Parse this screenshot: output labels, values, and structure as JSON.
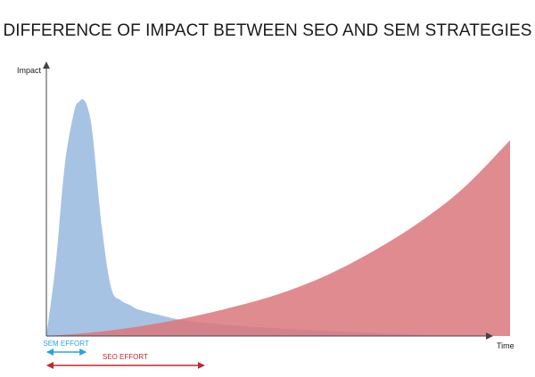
{
  "chart_data": {
    "type": "area",
    "title": "DIFFERENCE OF IMPACT BETWEEN SEO AND SEM STRATEGIES",
    "xlabel": "Time",
    "ylabel": "Impact",
    "xlim": [
      0,
      100
    ],
    "ylim": [
      0,
      100
    ],
    "grid": false,
    "series": [
      {
        "color": "#a7c3e3",
        "x": [
          0,
          2,
          4,
          6,
          7,
          8,
          9,
          10,
          12,
          14,
          16,
          18,
          20,
          25,
          30,
          40,
          50,
          60,
          70,
          80,
          85
        ],
        "y": [
          0,
          30,
          72,
          94,
          98,
          99,
          95,
          84,
          45,
          20,
          15,
          13,
          11,
          8.5,
          6.5,
          4.5,
          3.2,
          2.2,
          1.3,
          0.5,
          0
        ]
      },
      {
        "color": "#da777c",
        "x": [
          0,
          10,
          20,
          30,
          40,
          50,
          60,
          70,
          80,
          90,
          100
        ],
        "y": [
          0,
          1.5,
          4,
          7.5,
          12,
          17.5,
          25,
          35,
          47,
          62,
          82
        ]
      }
    ],
    "annotations": [
      {
        "text": "SEM EFFORT",
        "color": "#2aa3de",
        "x_start": 0,
        "x_end": 8.5
      },
      {
        "text": "SEO EFFORT",
        "color": "#c0282d",
        "x_start": 0,
        "x_end": 34
      }
    ]
  }
}
